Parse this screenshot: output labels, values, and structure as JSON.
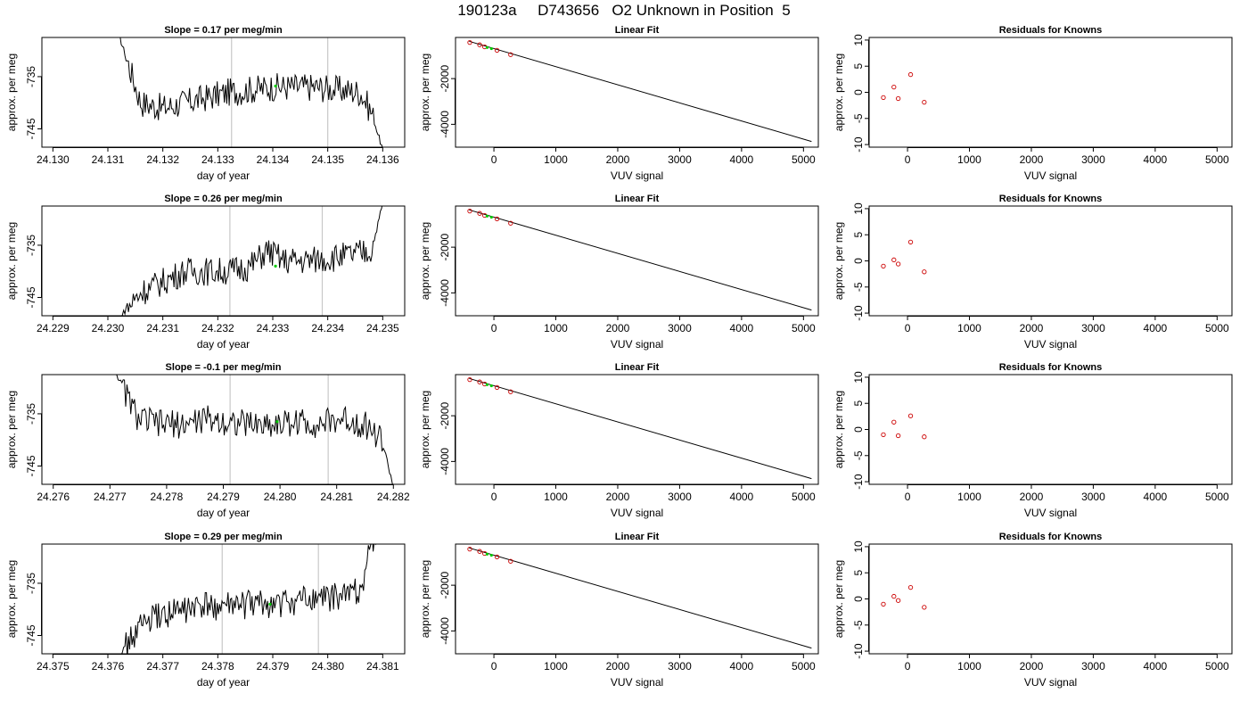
{
  "figure": {
    "title": "190123a     D743656   O2 Unknown in Position  5"
  },
  "chart_data": [
    {
      "panel": "r1c1",
      "type": "line",
      "title": "Slope =  0.17  per meg/min",
      "xlabel": "day of year",
      "ylabel": "approx. per meg",
      "xlim": [
        24.1298,
        24.1364
      ],
      "ylim": [
        -748.5,
        -727.5
      ],
      "xticks": [
        "24.130",
        "24.131",
        "24.132",
        "24.133",
        "24.134",
        "24.135",
        "24.136"
      ],
      "yticks": [
        "-745",
        "-735"
      ],
      "vlines": [
        24.13325,
        24.135
      ],
      "series": [
        {
          "x": [
            24.1312,
            24.1316,
            24.132,
            24.1324,
            24.1328,
            24.1332,
            24.1336,
            24.134,
            24.1344,
            24.1348,
            24.1352,
            24.1356,
            24.1358,
            24.136
          ],
          "y": [
            -727,
            -740,
            -741,
            -740,
            -739,
            -738,
            -737.5,
            -737,
            -737,
            -737,
            -737.5,
            -738,
            -742,
            -749
          ]
        }
      ],
      "markers": [
        {
          "x": 24.13405,
          "y": -736.8,
          "color": "#00cc00"
        }
      ]
    },
    {
      "panel": "r1c2",
      "type": "line",
      "title": "Linear Fit",
      "xlabel": "VUV signal",
      "ylabel": "approx. per meg",
      "xlim": [
        -620,
        5240
      ],
      "ylim": [
        -5000,
        -200
      ],
      "xticks": [
        "0",
        "1000",
        "2000",
        "3000",
        "4000",
        "5000"
      ],
      "yticks": [
        "-4000",
        "-2000"
      ],
      "fit_line": {
        "x": [
          -400,
          5130
        ],
        "y": [
          -368,
          -4750
        ]
      },
      "knowns": {
        "x": [
          -390,
          -230,
          -150,
          50,
          270
        ],
        "y": [
          -420,
          -520,
          -610,
          -760,
          -950
        ]
      },
      "unknowns": {
        "x": [
          -110,
          -40
        ],
        "y": [
          -640,
          -690
        ]
      }
    },
    {
      "panel": "r1c3",
      "type": "scatter",
      "title": "Residuals for Knowns",
      "xlabel": "VUV signal",
      "ylabel": "approx. per meg",
      "xlim": [
        -620,
        5240
      ],
      "ylim": [
        -10.5,
        10.5
      ],
      "xticks": [
        "0",
        "1000",
        "2000",
        "3000",
        "4000",
        "5000"
      ],
      "yticks": [
        "-10",
        "-5",
        "0",
        "5",
        "10"
      ],
      "points": {
        "x": [
          -390,
          -220,
          -150,
          50,
          270
        ],
        "y": [
          -1,
          1,
          -1.2,
          3.4,
          -1.9
        ]
      }
    },
    {
      "panel": "r2c1",
      "type": "line",
      "title": "Slope =  0.26  per meg/min",
      "xlabel": "day of year",
      "ylabel": "approx. per meg",
      "xlim": [
        24.2288,
        24.2354
      ],
      "ylim": [
        -748.5,
        -727.5
      ],
      "xticks": [
        "24.229",
        "24.230",
        "24.231",
        "24.232",
        "24.233",
        "24.234",
        "24.235"
      ],
      "yticks": [
        "-745",
        "-735"
      ],
      "vlines": [
        24.23222,
        24.2339
      ],
      "series": [
        {
          "x": [
            24.2302,
            24.2306,
            24.231,
            24.2314,
            24.2318,
            24.2322,
            24.2326,
            24.2329,
            24.2332,
            24.2336,
            24.234,
            24.2344,
            24.2348,
            24.235
          ],
          "y": [
            -749,
            -744,
            -742,
            -740,
            -740,
            -740,
            -739,
            -736,
            -738,
            -738,
            -737.5,
            -737,
            -736,
            -727
          ]
        }
      ],
      "markers": [
        {
          "x": 24.23305,
          "y": -739,
          "color": "#00cc00"
        }
      ]
    },
    {
      "panel": "r2c2",
      "type": "line",
      "title": "Linear Fit",
      "xlabel": "VUV signal",
      "ylabel": "approx. per meg",
      "xlim": [
        -620,
        5240
      ],
      "ylim": [
        -5000,
        -200
      ],
      "xticks": [
        "0",
        "1000",
        "2000",
        "3000",
        "4000",
        "5000"
      ],
      "yticks": [
        "-4000",
        "-2000"
      ],
      "fit_line": {
        "x": [
          -400,
          5130
        ],
        "y": [
          -368,
          -4750
        ]
      },
      "knowns": {
        "x": [
          -390,
          -230,
          -150,
          50,
          270
        ],
        "y": [
          -420,
          -520,
          -610,
          -760,
          -950
        ]
      },
      "unknowns": {
        "x": [
          -110,
          -40
        ],
        "y": [
          -640,
          -690
        ]
      }
    },
    {
      "panel": "r2c3",
      "type": "scatter",
      "title": "Residuals for Knowns",
      "xlabel": "VUV signal",
      "ylabel": "approx. per meg",
      "xlim": [
        -620,
        5240
      ],
      "ylim": [
        -10.5,
        10.5
      ],
      "xticks": [
        "0",
        "1000",
        "2000",
        "3000",
        "4000",
        "5000"
      ],
      "yticks": [
        "-10",
        "-5",
        "0",
        "5",
        "10"
      ],
      "points": {
        "x": [
          -390,
          -220,
          -150,
          50,
          270
        ],
        "y": [
          -1,
          0.2,
          -0.6,
          3.6,
          -2.1
        ]
      }
    },
    {
      "panel": "r3c1",
      "type": "line",
      "title": "Slope =  -0.1  per meg/min",
      "xlabel": "day of year",
      "ylabel": "approx. per meg",
      "xlim": [
        24.2758,
        24.2822
      ],
      "ylim": [
        -748.5,
        -727.5
      ],
      "xticks": [
        "24.276",
        "24.277",
        "24.278",
        "24.279",
        "24.280",
        "24.281",
        "24.282"
      ],
      "yticks": [
        "-745",
        "-735"
      ],
      "vlines": [
        24.27912,
        24.28085
      ],
      "series": [
        {
          "x": [
            24.2771,
            24.2775,
            24.2779,
            24.2783,
            24.2787,
            24.2791,
            24.2795,
            24.2799,
            24.2803,
            24.2807,
            24.2811,
            24.2815,
            24.2818,
            24.282
          ],
          "y": [
            -727,
            -736,
            -737,
            -737,
            -736,
            -736.5,
            -737,
            -737,
            -736.5,
            -737,
            -736,
            -737,
            -740,
            -749
          ]
        }
      ],
      "markers": [
        {
          "x": 24.27995,
          "y": -736.5,
          "color": "#00cc00"
        }
      ]
    },
    {
      "panel": "r3c2",
      "type": "line",
      "title": "Linear Fit",
      "xlabel": "VUV signal",
      "ylabel": "approx. per meg",
      "xlim": [
        -620,
        5240
      ],
      "ylim": [
        -5000,
        -200
      ],
      "xticks": [
        "0",
        "1000",
        "2000",
        "3000",
        "4000",
        "5000"
      ],
      "yticks": [
        "-4000",
        "-2000"
      ],
      "fit_line": {
        "x": [
          -400,
          5130
        ],
        "y": [
          -368,
          -4750
        ]
      },
      "knowns": {
        "x": [
          -390,
          -230,
          -150,
          50,
          270
        ],
        "y": [
          -420,
          -520,
          -610,
          -760,
          -950
        ]
      },
      "unknowns": {
        "x": [
          -110,
          -40
        ],
        "y": [
          -640,
          -690
        ]
      }
    },
    {
      "panel": "r3c3",
      "type": "scatter",
      "title": "Residuals for Knowns",
      "xlabel": "VUV signal",
      "ylabel": "approx. per meg",
      "xlim": [
        -620,
        5240
      ],
      "ylim": [
        -10.5,
        10.5
      ],
      "xticks": [
        "0",
        "1000",
        "2000",
        "3000",
        "4000",
        "5000"
      ],
      "yticks": [
        "-10",
        "-5",
        "0",
        "5",
        "10"
      ],
      "points": {
        "x": [
          -390,
          -220,
          -150,
          50,
          270
        ],
        "y": [
          -1,
          1.4,
          -1.2,
          2.6,
          -1.4
        ]
      }
    },
    {
      "panel": "r4c1",
      "type": "line",
      "title": "Slope =  0.29  per meg/min",
      "xlabel": "day of year",
      "ylabel": "approx. per meg",
      "xlim": [
        24.3748,
        24.3814
      ],
      "ylim": [
        -748.5,
        -727.5
      ],
      "xticks": [
        "24.375",
        "24.376",
        "24.377",
        "24.378",
        "24.379",
        "24.380",
        "24.381"
      ],
      "yticks": [
        "-745",
        "-735"
      ],
      "vlines": [
        24.37808,
        24.37983
      ],
      "series": [
        {
          "x": [
            24.3762,
            24.3766,
            24.377,
            24.3774,
            24.3778,
            24.3782,
            24.3786,
            24.379,
            24.3794,
            24.3798,
            24.3802,
            24.3806,
            24.3808,
            24.381
          ],
          "y": [
            -749,
            -743,
            -741,
            -740,
            -739.5,
            -739.5,
            -739,
            -739,
            -738.5,
            -738,
            -737.5,
            -736,
            -727,
            -727
          ]
        }
      ],
      "markers": [
        {
          "x": 24.37895,
          "y": -739,
          "color": "#00cc00"
        }
      ]
    },
    {
      "panel": "r4c2",
      "type": "line",
      "title": "Linear Fit",
      "xlabel": "VUV signal",
      "ylabel": "approx. per meg",
      "xlim": [
        -620,
        5240
      ],
      "ylim": [
        -5000,
        -200
      ],
      "xticks": [
        "0",
        "1000",
        "2000",
        "3000",
        "4000",
        "5000"
      ],
      "yticks": [
        "-4000",
        "-2000"
      ],
      "fit_line": {
        "x": [
          -400,
          5130
        ],
        "y": [
          -368,
          -4750
        ]
      },
      "knowns": {
        "x": [
          -390,
          -230,
          -150,
          50,
          270
        ],
        "y": [
          -420,
          -520,
          -610,
          -760,
          -950
        ]
      },
      "unknowns": {
        "x": [
          -110,
          -40
        ],
        "y": [
          -640,
          -690
        ]
      }
    },
    {
      "panel": "r4c3",
      "type": "scatter",
      "title": "Residuals for Knowns",
      "xlabel": "VUV signal",
      "ylabel": "approx. per meg",
      "xlim": [
        -620,
        5240
      ],
      "ylim": [
        -10.5,
        10.5
      ],
      "xticks": [
        "0",
        "1000",
        "2000",
        "3000",
        "4000",
        "5000"
      ],
      "yticks": [
        "-10",
        "-5",
        "0",
        "5",
        "10"
      ],
      "points": {
        "x": [
          -390,
          -220,
          -150,
          50,
          270
        ],
        "y": [
          -1,
          0.5,
          -0.3,
          2.2,
          -1.6
        ]
      }
    }
  ],
  "colors": {
    "trace": "#000000",
    "unknown_marker": "#00cc00",
    "known_marker": "#cc0000",
    "vline": "#c8c8c8"
  }
}
